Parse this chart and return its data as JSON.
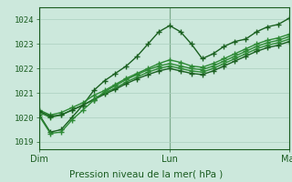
{
  "bg_color": "#cce8dc",
  "grid_color": "#aacfbf",
  "line_color_dark": "#1a5c20",
  "ylabel_values": [
    1019,
    1020,
    1021,
    1022,
    1023,
    1024
  ],
  "ylim": [
    1018.7,
    1024.5
  ],
  "xlabel": "Pression niveau de la mer( hPa )",
  "xtick_labels": [
    "Dim",
    "Lun",
    "Mar"
  ],
  "marker": "+",
  "series": [
    [
      1020.1,
      1019.4,
      1019.5,
      1020.0,
      1020.5,
      1021.1,
      1021.5,
      1021.8,
      1022.1,
      1022.5,
      1023.0,
      1023.5,
      1023.75,
      1023.5,
      1023.0,
      1022.4,
      1022.6,
      1022.9,
      1023.1,
      1023.2,
      1023.5,
      1023.7,
      1023.8,
      1024.05
    ],
    [
      1020.3,
      1020.1,
      1020.2,
      1020.4,
      1020.6,
      1020.9,
      1021.1,
      1021.35,
      1021.6,
      1021.8,
      1022.0,
      1022.2,
      1022.35,
      1022.25,
      1022.1,
      1022.05,
      1022.2,
      1022.4,
      1022.6,
      1022.8,
      1023.0,
      1023.15,
      1023.25,
      1023.4
    ],
    [
      1020.2,
      1020.0,
      1020.1,
      1020.3,
      1020.5,
      1020.75,
      1021.0,
      1021.2,
      1021.45,
      1021.65,
      1021.85,
      1022.0,
      1022.1,
      1022.0,
      1021.9,
      1021.85,
      1022.0,
      1022.2,
      1022.4,
      1022.6,
      1022.8,
      1022.95,
      1023.05,
      1023.2
    ],
    [
      1020.25,
      1020.05,
      1020.1,
      1020.3,
      1020.5,
      1020.72,
      1020.95,
      1021.15,
      1021.38,
      1021.58,
      1021.75,
      1021.9,
      1022.0,
      1021.9,
      1021.8,
      1021.75,
      1021.9,
      1022.1,
      1022.3,
      1022.5,
      1022.7,
      1022.85,
      1022.95,
      1023.1
    ],
    [
      1020.05,
      1019.35,
      1019.4,
      1019.9,
      1020.3,
      1020.7,
      1021.05,
      1021.3,
      1021.55,
      1021.75,
      1021.95,
      1022.1,
      1022.2,
      1022.1,
      1022.0,
      1021.95,
      1022.1,
      1022.3,
      1022.5,
      1022.7,
      1022.9,
      1023.05,
      1023.15,
      1023.3
    ]
  ],
  "line_colors": [
    "#1a6020",
    "#2d8a35",
    "#2d8a35",
    "#1a6020",
    "#2d8a35"
  ],
  "line_widths": [
    1.0,
    1.0,
    1.0,
    1.0,
    1.0
  ],
  "n_points": 24,
  "dim_idx": 0,
  "lun_idx": 12,
  "mar_idx": 23
}
